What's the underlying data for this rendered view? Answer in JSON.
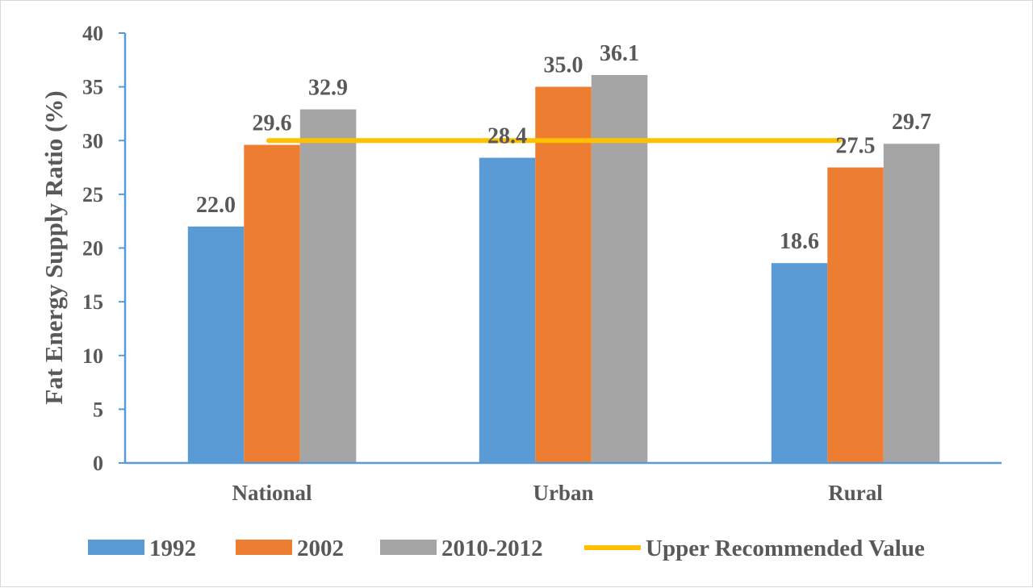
{
  "chart_data": {
    "type": "bar",
    "title": "",
    "xlabel": "",
    "ylabel": "Fat Energy Supply Ratio (%)",
    "ylim": [
      0,
      40
    ],
    "yticks": [
      0,
      5,
      10,
      15,
      20,
      25,
      30,
      35,
      40
    ],
    "grid": false,
    "legend_position": "bottom",
    "categories": [
      "National",
      "Urban",
      "Rural"
    ],
    "series": [
      {
        "name": "1992",
        "color": "#5b9bd5",
        "values": [
          22.0,
          28.4,
          18.6
        ],
        "labels": [
          "22.0",
          "28.4",
          "18.6"
        ]
      },
      {
        "name": "2002",
        "color": "#ed7d31",
        "values": [
          29.6,
          35.0,
          27.5
        ],
        "labels": [
          "29.6",
          "35.0",
          "27.5"
        ]
      },
      {
        "name": "2010-2012",
        "color": "#a5a5a5",
        "values": [
          32.9,
          36.1,
          29.7
        ],
        "labels": [
          "32.9",
          "36.1",
          "29.7"
        ]
      }
    ],
    "reference_line": {
      "name": "Upper Recommended Value",
      "color": "#ffc000",
      "value": 30
    },
    "axis_color": "#5b9bd5",
    "text_color": "#595959"
  }
}
